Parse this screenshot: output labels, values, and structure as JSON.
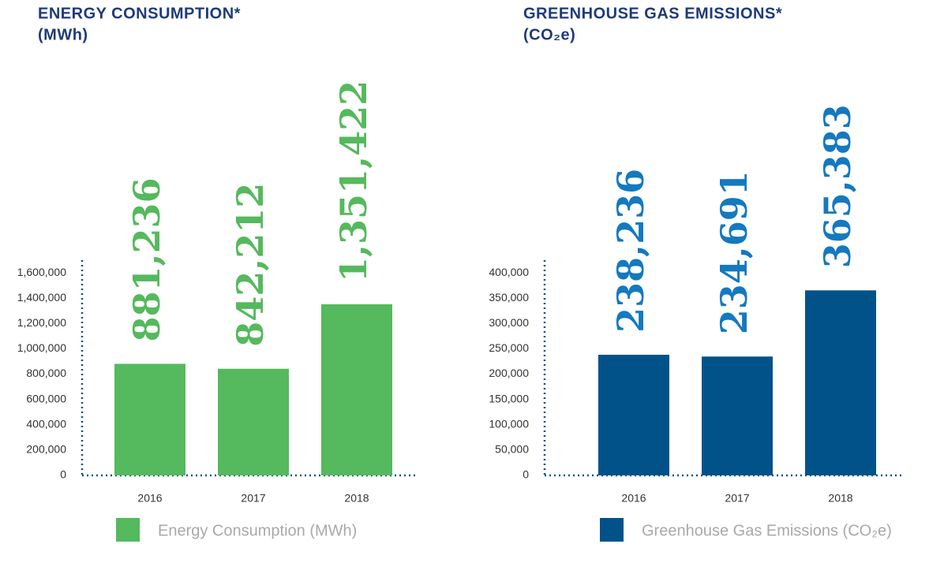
{
  "chart_data": [
    {
      "type": "bar",
      "title": "ENERGY CONSUMPTION*",
      "subtitle": "(MWh)",
      "categories": [
        "2016",
        "2017",
        "2018"
      ],
      "series": [
        {
          "name": "Energy Consumption (MWh)",
          "color": "#55b95d",
          "label_color": "#55b95d",
          "values": [
            881236,
            842212,
            1351422
          ],
          "value_labels": [
            "881,236",
            "842,212",
            "1,351,422"
          ]
        }
      ],
      "ylim": [
        0,
        1700000
      ],
      "yticks": [
        0,
        {
          "value": 200000,
          "label": "200,000"
        },
        {
          "value": 400000,
          "label": "400,000"
        },
        {
          "value": 600000,
          "label": "600,000"
        },
        {
          "value": 800000,
          "label": "800,000"
        },
        {
          "value": 1000000,
          "label": "1,000,000"
        },
        {
          "value": 1200000,
          "label": "1,200,000"
        },
        {
          "value": 1400000,
          "label": "1,400,000"
        },
        {
          "value": 1600000,
          "label": "1,600,000"
        }
      ],
      "grid": false
    },
    {
      "type": "bar",
      "title": "GREENHOUSE GAS EMISSIONS*",
      "subtitle": "(CO₂e)",
      "categories": [
        "2016",
        "2017",
        "2018"
      ],
      "series": [
        {
          "name": "Greenhouse Gas Emissions (CO₂e)",
          "color": "#02528a",
          "label_color": "#1479bf",
          "values": [
            238236,
            234691,
            365383
          ],
          "value_labels": [
            "238,236",
            "234,691",
            "365,383"
          ]
        }
      ],
      "ylim": [
        0,
        425000
      ],
      "yticks": [
        0,
        {
          "value": 50000,
          "label": "50,000"
        },
        {
          "value": 100000,
          "label": "100,000"
        },
        {
          "value": 150000,
          "label": "150,000"
        },
        {
          "value": 200000,
          "label": "200,000"
        },
        {
          "value": 250000,
          "label": "250,000"
        },
        {
          "value": 300000,
          "label": "300,000"
        },
        {
          "value": 350000,
          "label": "350,000"
        },
        {
          "value": 400000,
          "label": "400,000"
        }
      ],
      "grid": false
    }
  ]
}
